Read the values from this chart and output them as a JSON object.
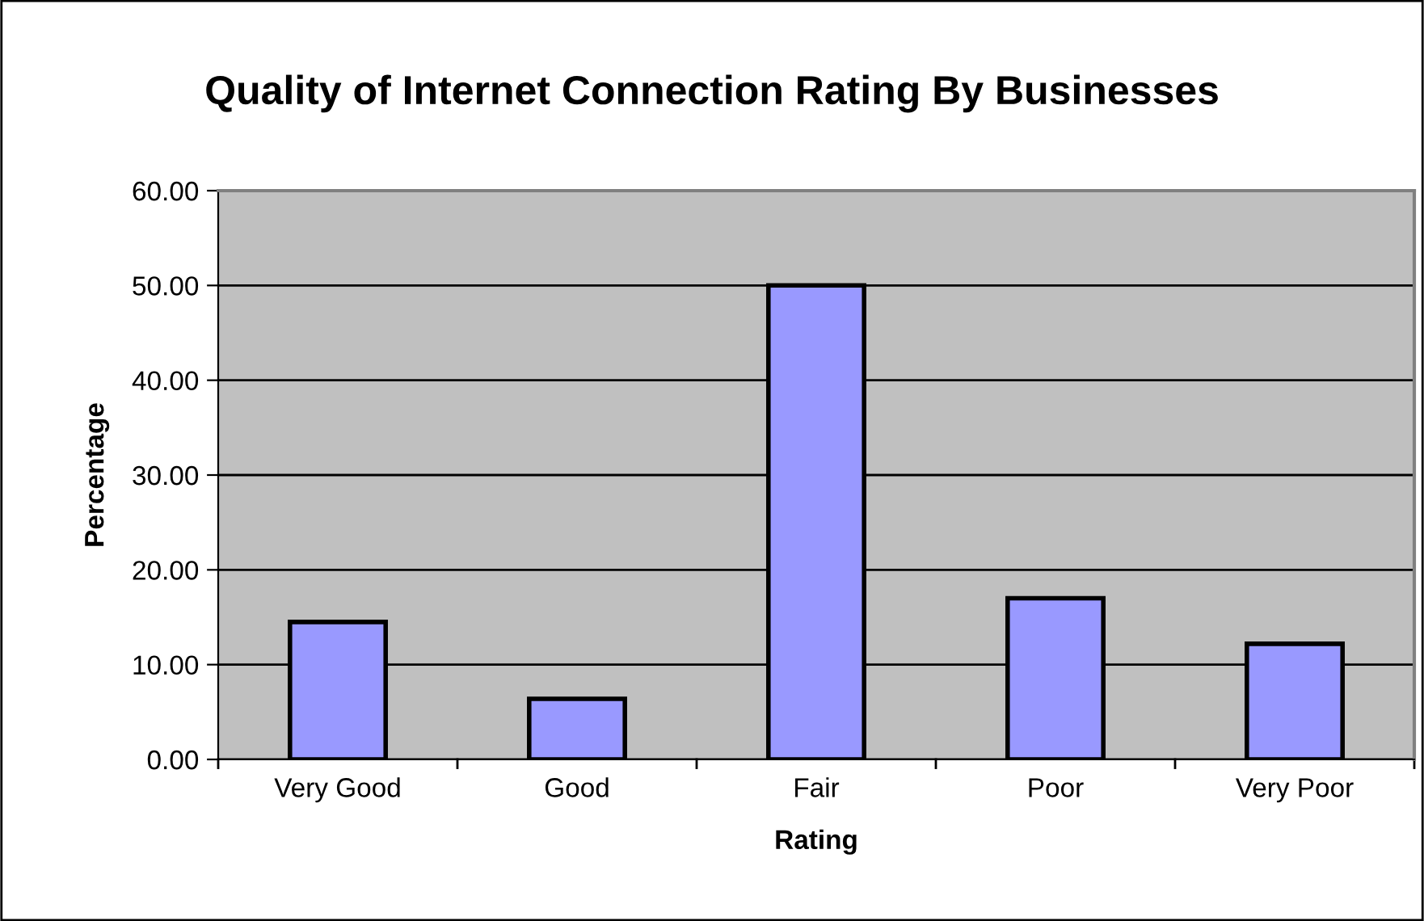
{
  "chart_data": {
    "type": "bar",
    "title": "Quality of Internet Connection Rating By Businesses",
    "xlabel": "Rating",
    "ylabel": "Percentage",
    "categories": [
      "Very Good",
      "Good",
      "Fair",
      "Poor",
      "Very Poor"
    ],
    "values": [
      14.5,
      6.4,
      50.0,
      17.0,
      12.2
    ],
    "color": "#9999ff",
    "ylim": [
      0,
      60
    ],
    "yticks": [
      {
        "value": 0,
        "label": "0.00"
      },
      {
        "value": 10,
        "label": "10.00"
      },
      {
        "value": 20,
        "label": "20.00"
      },
      {
        "value": 30,
        "label": "30.00"
      },
      {
        "value": 40,
        "label": "40.00"
      },
      {
        "value": 50,
        "label": "50.00"
      },
      {
        "value": 60,
        "label": "60.00"
      }
    ],
    "grid": "y",
    "legend": false
  }
}
